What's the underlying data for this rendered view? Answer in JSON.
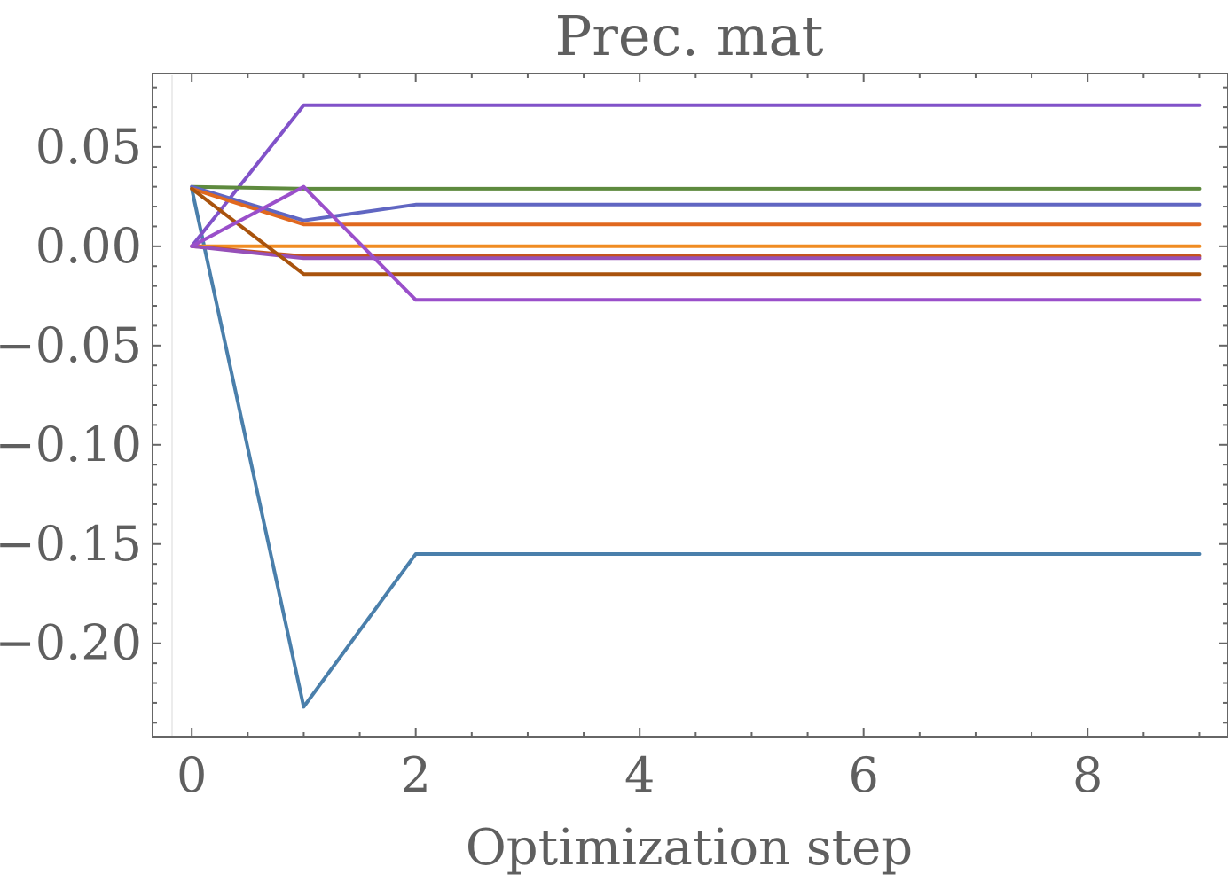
{
  "chart_data": {
    "type": "line",
    "title": "Prec. mat",
    "xlabel": "Optimization step",
    "ylabel": "",
    "xlim": [
      -0.35,
      9.25
    ],
    "ylim": [
      -0.247,
      0.087
    ],
    "x_ticks": [
      0,
      2,
      4,
      6,
      8
    ],
    "x_tick_labels": [
      "0",
      "2",
      "4",
      "6",
      "8"
    ],
    "y_ticks": [
      0.05,
      0.0,
      -0.05,
      -0.1,
      -0.15,
      -0.2
    ],
    "y_tick_labels": [
      "0.05",
      "0.00",
      "−0.05",
      "−0.10",
      "−0.15",
      "−0.20"
    ],
    "grid": false,
    "legend": "none",
    "x": [
      0,
      1,
      2,
      3,
      4,
      5,
      6,
      7,
      8,
      9
    ],
    "series": [
      {
        "color": "#4a7fab",
        "values": [
          0.029,
          -0.232,
          -0.155,
          -0.155,
          -0.155,
          -0.155,
          -0.155,
          -0.155,
          -0.155,
          -0.155
        ]
      },
      {
        "color": "#8152c9",
        "values": [
          0.0,
          0.071,
          0.071,
          0.071,
          0.071,
          0.071,
          0.071,
          0.071,
          0.071,
          0.071
        ]
      },
      {
        "color": "#5e8a3e",
        "values": [
          0.03,
          0.029,
          0.029,
          0.029,
          0.029,
          0.029,
          0.029,
          0.029,
          0.029,
          0.029
        ]
      },
      {
        "color": "#6066c2",
        "values": [
          0.03,
          0.013,
          0.021,
          0.021,
          0.021,
          0.021,
          0.021,
          0.021,
          0.021,
          0.021
        ]
      },
      {
        "color": "#e0681f",
        "values": [
          0.029,
          0.011,
          0.011,
          0.011,
          0.011,
          0.011,
          0.011,
          0.011,
          0.011,
          0.011
        ]
      },
      {
        "color": "#f08c22",
        "values": [
          0.0,
          0.0,
          0.0,
          0.0,
          0.0,
          0.0,
          0.0,
          0.0,
          0.0,
          0.0
        ]
      },
      {
        "color": "#c4521f",
        "values": [
          0.0,
          -0.005,
          -0.005,
          -0.005,
          -0.005,
          -0.005,
          -0.005,
          -0.005,
          -0.005,
          -0.005
        ]
      },
      {
        "color": "#9650b8",
        "values": [
          0.0,
          -0.006,
          -0.006,
          -0.006,
          -0.006,
          -0.006,
          -0.006,
          -0.006,
          -0.006,
          -0.006
        ]
      },
      {
        "color": "#a9530d",
        "values": [
          0.029,
          -0.014,
          -0.014,
          -0.014,
          -0.014,
          -0.014,
          -0.014,
          -0.014,
          -0.014,
          -0.014
        ]
      },
      {
        "color": "#9a4fca",
        "values": [
          0.0,
          0.03,
          -0.027,
          -0.027,
          -0.027,
          -0.027,
          -0.027,
          -0.027,
          -0.027,
          -0.027
        ]
      }
    ]
  }
}
